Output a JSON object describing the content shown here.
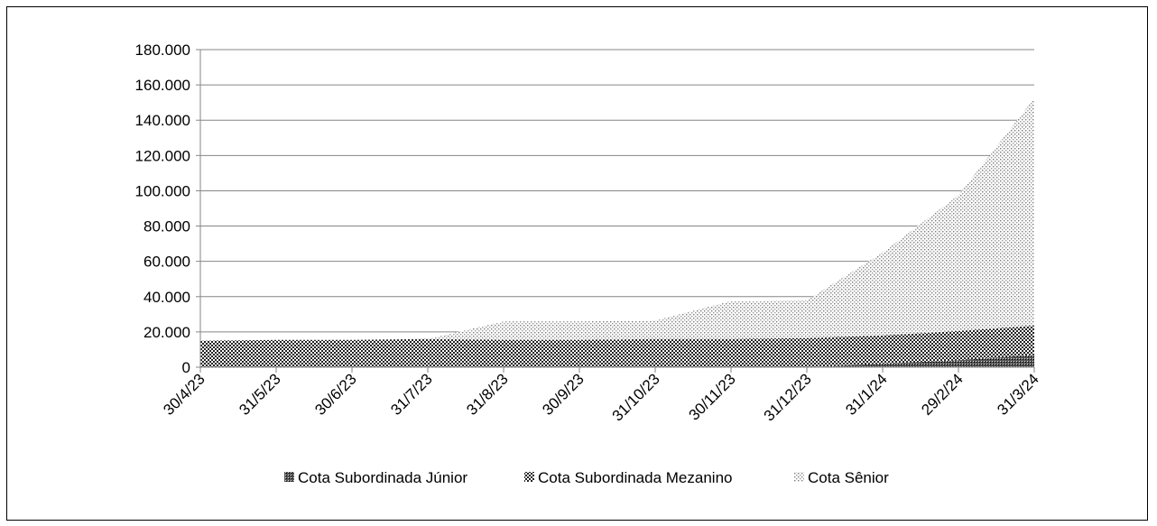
{
  "chart_data": {
    "type": "area",
    "stacked": true,
    "title": "",
    "xlabel": "",
    "ylabel": "",
    "ylim": [
      0,
      180000
    ],
    "yticks": [
      0,
      20000,
      40000,
      60000,
      80000,
      100000,
      120000,
      140000,
      160000,
      180000
    ],
    "ytick_labels": [
      "0",
      "20.000",
      "40.000",
      "60.000",
      "80.000",
      "100.000",
      "120.000",
      "140.000",
      "160.000",
      "180.000"
    ],
    "categories": [
      "30/4/23",
      "31/5/23",
      "30/6/23",
      "31/7/23",
      "31/8/23",
      "30/9/23",
      "31/10/23",
      "30/11/23",
      "31/12/23",
      "31/1/24",
      "29/2/24",
      "31/3/24"
    ],
    "grid": true,
    "legend_position": "bottom",
    "series": [
      {
        "name": "Cota Subordinada Júnior",
        "pattern": "dense-check",
        "values": [
          0,
          0,
          0,
          0,
          0,
          0,
          0,
          0,
          0,
          2000,
          4000,
          7000
        ]
      },
      {
        "name": "Cota Subordinada Mezanino",
        "pattern": "check",
        "values": [
          15000,
          15500,
          15500,
          16000,
          15500,
          15500,
          16000,
          16000,
          16500,
          16000,
          16500,
          16500
        ]
      },
      {
        "name": "Cota Sênior",
        "pattern": "dots",
        "values": [
          0,
          0,
          0,
          0,
          10500,
          10500,
          10500,
          21500,
          21500,
          47000,
          77000,
          129000
        ]
      }
    ]
  }
}
